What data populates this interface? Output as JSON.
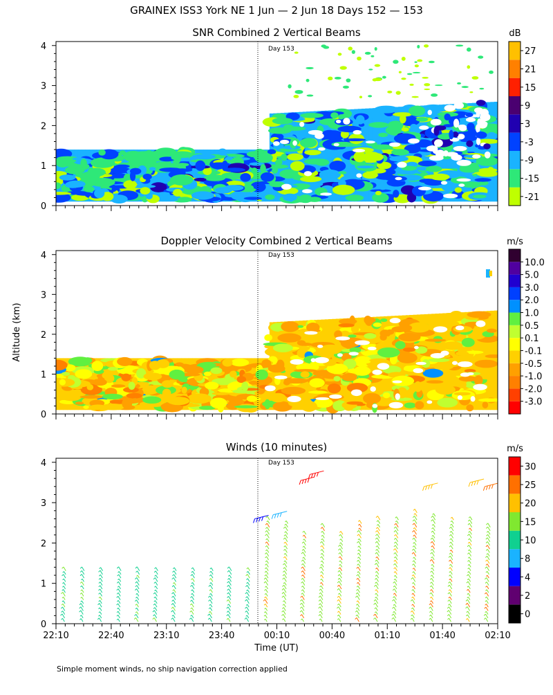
{
  "header": {
    "title": "GRAINEX ISS3 York NE    1 Jun —  2 Jun 18 Days 152 — 153"
  },
  "y_axis_label": "Altitude (km)",
  "x_axis_label": "Time (UT)",
  "time_ticks": [
    "22:10",
    "22:40",
    "23:10",
    "23:40",
    "00:10",
    "00:40",
    "01:10",
    "01:40",
    "02:10"
  ],
  "altitude_ticks": [
    "0",
    "1",
    "2",
    "3",
    "4"
  ],
  "day_marker": "Day 153",
  "footer_note": "Simple moment winds, no ship navigation correction applied",
  "colors": {
    "snr": [
      "#bfff00",
      "#2ee878",
      "#1ab3ff",
      "#0042ff",
      "#2000b0",
      "#4a0070",
      "#ff2000",
      "#ff8000",
      "#ffc000"
    ],
    "doppler": [
      "#ff0000",
      "#ff4000",
      "#ff8000",
      "#ffa000",
      "#ffd000",
      "#ffff00",
      "#c0ff30",
      "#60f040",
      "#0090ff",
      "#0040ff",
      "#2000d0",
      "#5000a0",
      "#300030"
    ],
    "winds": [
      "#000000",
      "#600070",
      "#0000ff",
      "#1ab3ff",
      "#10d090",
      "#80e830",
      "#ffc000",
      "#ff7000",
      "#ff0000"
    ]
  },
  "chart_data": [
    {
      "type": "heatmap",
      "title": "SNR Combined 2 Vertical Beams",
      "colorbar_unit": "dB",
      "colorbar_labels": [
        "-21",
        "-15",
        "-9",
        "-3",
        "3",
        "9",
        "15",
        "21",
        "27"
      ],
      "x": [
        "22:10",
        "00:03",
        "02:10"
      ],
      "coverage_top_km": [
        1.4,
        2.3,
        2.6
      ],
      "ylim": [
        0,
        4
      ],
      "xlabel": "",
      "ylabel": "Altitude (km)"
    },
    {
      "type": "heatmap",
      "title": "Doppler Velocity Combined 2 Vertical Beams",
      "colorbar_unit": "m/s",
      "colorbar_labels": [
        "-3.0",
        "-2.0",
        "-1.0",
        "-0.5",
        "-0.1",
        "0.1",
        "0.5",
        "1.0",
        "2.0",
        "3.0",
        "5.0",
        "10.0"
      ],
      "x": [
        "22:10",
        "00:03",
        "02:10"
      ],
      "coverage_top_km": [
        1.4,
        2.3,
        2.6
      ],
      "ylim": [
        0,
        4
      ],
      "xlabel": "",
      "ylabel": "Altitude (km)"
    },
    {
      "type": "scatter",
      "title": "Winds (10 minutes)",
      "colorbar_unit": "m/s",
      "colorbar_labels": [
        "0",
        "2",
        "4",
        "8",
        "10",
        "15",
        "20",
        "25",
        "30"
      ],
      "profile_times_min_after_2210": [
        5,
        15,
        25,
        35,
        45,
        55,
        65,
        75,
        85,
        95,
        105,
        115,
        125,
        135,
        145,
        155,
        165,
        175,
        185,
        195,
        205,
        215,
        225,
        235
      ],
      "profile_top_km": [
        1.4,
        1.4,
        1.4,
        1.4,
        1.4,
        1.4,
        1.4,
        1.4,
        1.4,
        1.4,
        1.4,
        2.6,
        2.5,
        2.3,
        2.4,
        2.3,
        2.5,
        2.6,
        2.6,
        2.8,
        2.7,
        2.6,
        2.6,
        2.4
      ],
      "ylim": [
        0,
        4
      ],
      "xlabel": "Time (UT)",
      "ylabel": "Altitude (km)"
    }
  ]
}
